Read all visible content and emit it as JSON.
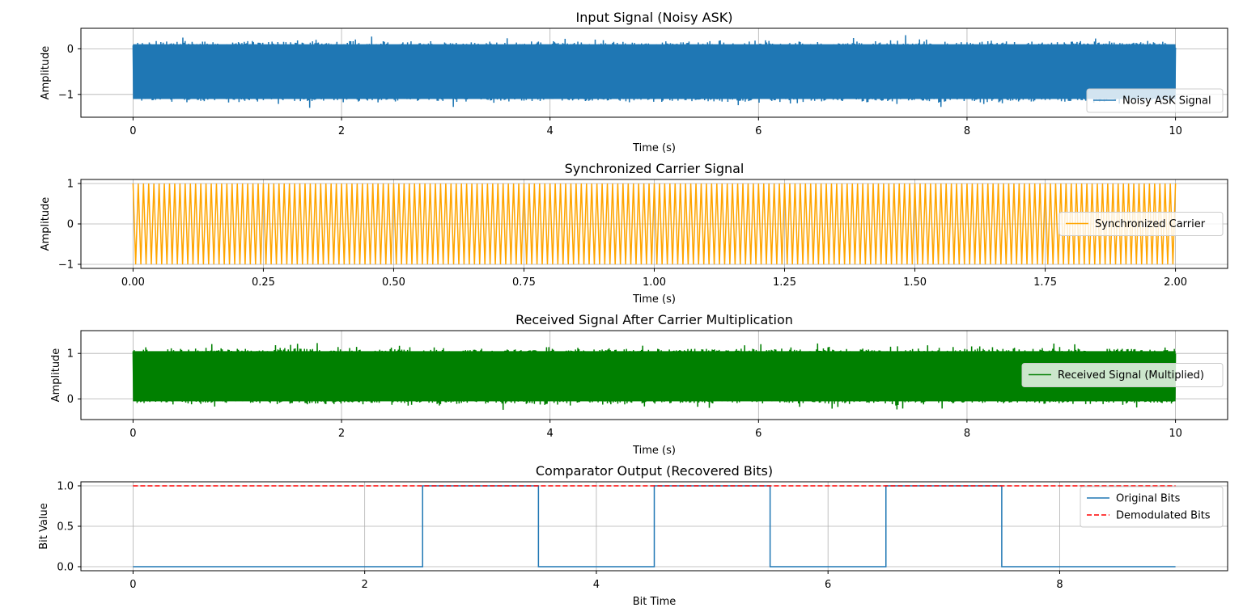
{
  "colors": {
    "blue": "#1f77b4",
    "orange": "#ffa500",
    "green": "#008000",
    "red": "#ff0000",
    "grid": "#b0b0b0"
  },
  "chart_data": [
    {
      "type": "line",
      "title": "Input Signal (Noisy ASK)",
      "xlabel": "Time (s)",
      "ylabel": "Amplitude",
      "xlim": [
        -0.5,
        10.5
      ],
      "ylim": [
        -1.5,
        0.45
      ],
      "xticks": [
        0,
        2,
        4,
        6,
        8,
        10
      ],
      "yticks": [
        -1,
        0
      ],
      "grid": true,
      "legend": "lower right",
      "series": [
        {
          "name": "Noisy ASK Signal",
          "color": "#1f77b4",
          "kind": "noise",
          "x_range": [
            0,
            10
          ],
          "y_min": -1.2,
          "y_max": 0.2
        }
      ]
    },
    {
      "type": "line",
      "title": "Synchronized Carrier Signal",
      "xlabel": "Time (s)",
      "ylabel": "Amplitude",
      "xlim": [
        -0.1,
        2.1
      ],
      "ylim": [
        -1.1,
        1.1
      ],
      "xticks": [
        0.0,
        0.25,
        0.5,
        0.75,
        1.0,
        1.25,
        1.5,
        1.75,
        2.0
      ],
      "xtick_labels": [
        "0.00",
        "0.25",
        "0.50",
        "0.75",
        "1.00",
        "1.25",
        "1.50",
        "1.75",
        "2.00"
      ],
      "yticks": [
        -1,
        0,
        1
      ],
      "grid": true,
      "legend": "center right",
      "series": [
        {
          "name": "Synchronized Carrier",
          "color": "#ffa500",
          "kind": "carrier",
          "x_range": [
            0,
            2
          ],
          "frequency": 100,
          "amplitude": 1
        }
      ]
    },
    {
      "type": "line",
      "title": "Received Signal After Carrier Multiplication",
      "xlabel": "Time (s)",
      "ylabel": "Amplitude",
      "xlim": [
        -0.5,
        10.5
      ],
      "ylim": [
        -0.45,
        1.5
      ],
      "xticks": [
        0,
        2,
        4,
        6,
        8,
        10
      ],
      "yticks": [
        0,
        1
      ],
      "grid": true,
      "legend": "center right",
      "series": [
        {
          "name": "Received Signal (Multiplied)",
          "color": "#008000",
          "kind": "noise",
          "x_range": [
            0,
            10
          ],
          "y_min": -0.15,
          "y_max": 1.15
        }
      ]
    },
    {
      "type": "line",
      "title": "Comparator Output (Recovered Bits)",
      "xlabel": "Bit Time",
      "ylabel": "Bit Value",
      "xlim": [
        -0.45,
        9.45
      ],
      "ylim": [
        -0.05,
        1.05
      ],
      "xticks": [
        0,
        2,
        4,
        6,
        8
      ],
      "yticks": [
        0.0,
        0.5,
        1.0
      ],
      "ytick_labels": [
        "0.0",
        "0.5",
        "1.0"
      ],
      "grid": true,
      "legend": "upper right",
      "series": [
        {
          "name": "Original Bits",
          "color": "#1f77b4",
          "kind": "step",
          "x": [
            0,
            2.5,
            2.5,
            3.5,
            3.5,
            4.5,
            4.5,
            5.5,
            5.5,
            6.5,
            6.5,
            7.5,
            7.5,
            9
          ],
          "y": [
            0,
            0,
            1,
            1,
            0,
            0,
            1,
            1,
            0,
            0,
            1,
            1,
            0,
            0
          ]
        },
        {
          "name": "Demodulated Bits",
          "color": "#ff0000",
          "kind": "dashed",
          "x": [
            0,
            9
          ],
          "y": [
            1,
            1
          ]
        }
      ]
    }
  ]
}
